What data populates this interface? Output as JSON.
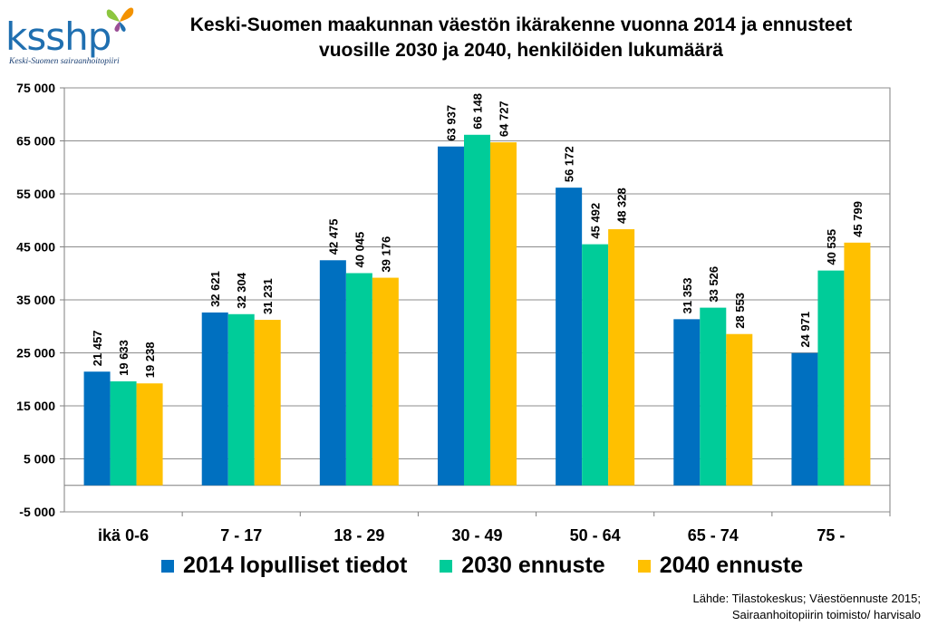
{
  "logo": {
    "text": "ksshp",
    "subtitle": "Keski-Suomen sairaanhoitopiiri",
    "colors": {
      "word": "#1f6fb0",
      "wing_green": "#8cc63f",
      "wing_orange": "#f39200",
      "wing_purple": "#9b4f96"
    }
  },
  "chart_data": {
    "type": "bar",
    "title": "Keski-Suomen maakunnan väestön ikärakenne vuonna 2014 ja ennusteet vuosille 2030 ja 2040, henkilöiden lukumäärä",
    "title_lines": [
      "Keski-Suomen maakunnan väestön ikärakenne vuonna 2014 ja ennusteet",
      "vuosille 2030 ja 2040, henkilöiden lukumäärä"
    ],
    "categories": [
      "ikä 0-6",
      "7 - 17",
      "18 - 29",
      "30 - 49",
      "50 - 64",
      "65 - 74",
      "75 -"
    ],
    "series": [
      {
        "name": "2014 lopulliset tiedot",
        "color": "#0070c0",
        "values": [
          21457,
          32621,
          42475,
          63937,
          56172,
          31353,
          24971
        ],
        "labels": [
          "21 457",
          "32 621",
          "42 475",
          "63 937",
          "56 172",
          "31 353",
          "24 971"
        ]
      },
      {
        "name": "2030 ennuste",
        "color": "#00cc99",
        "values": [
          19633,
          32304,
          40045,
          66148,
          45492,
          33526,
          40535
        ],
        "labels": [
          "19 633",
          "32 304",
          "40 045",
          "66 148",
          "45 492",
          "33 526",
          "40 535"
        ]
      },
      {
        "name": "2040 ennuste",
        "color": "#ffc000",
        "values": [
          19238,
          31231,
          39176,
          64727,
          48328,
          28553,
          45799
        ],
        "labels": [
          "19 238",
          "31 231",
          "39 176",
          "64 727",
          "48 328",
          "28 553",
          "45 799"
        ]
      }
    ],
    "ylim": [
      -5000,
      75000
    ],
    "yticks": [
      -5000,
      5000,
      15000,
      25000,
      35000,
      45000,
      55000,
      65000,
      75000
    ],
    "ytick_labels": [
      "-5 000",
      "5 000",
      "15 000",
      "25 000",
      "35 000",
      "45 000",
      "55 000",
      "65 000",
      "75 000"
    ],
    "grid": true,
    "legend_position": "bottom",
    "data_labels_rotated": true
  },
  "source": {
    "line1": "Lähde: Tilastokeskus; Väestöennuste 2015;",
    "line2": "Sairaanhoitopiirin toimisto/ harvisalo"
  }
}
